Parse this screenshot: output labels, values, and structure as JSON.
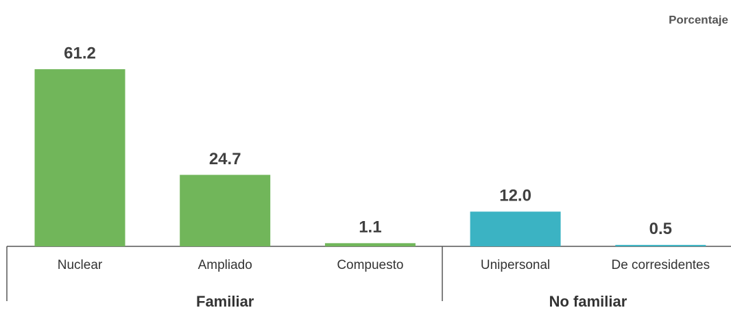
{
  "chart_data": {
    "type": "bar",
    "unit_label": "Porcentaje",
    "groups": [
      {
        "name": "Familiar",
        "color": "#71b65a",
        "categories": [
          "Nuclear",
          "Ampliado",
          "Compuesto"
        ],
        "values": [
          61.2,
          24.7,
          1.1
        ],
        "value_labels": [
          "61.2",
          "24.7",
          "1.1"
        ]
      },
      {
        "name": "No familiar",
        "color": "#3bb3c3",
        "categories": [
          "Unipersonal",
          "De corresidentes"
        ],
        "values": [
          12,
          0.5
        ],
        "value_labels": [
          "12.0",
          "0.5"
        ]
      }
    ]
  }
}
